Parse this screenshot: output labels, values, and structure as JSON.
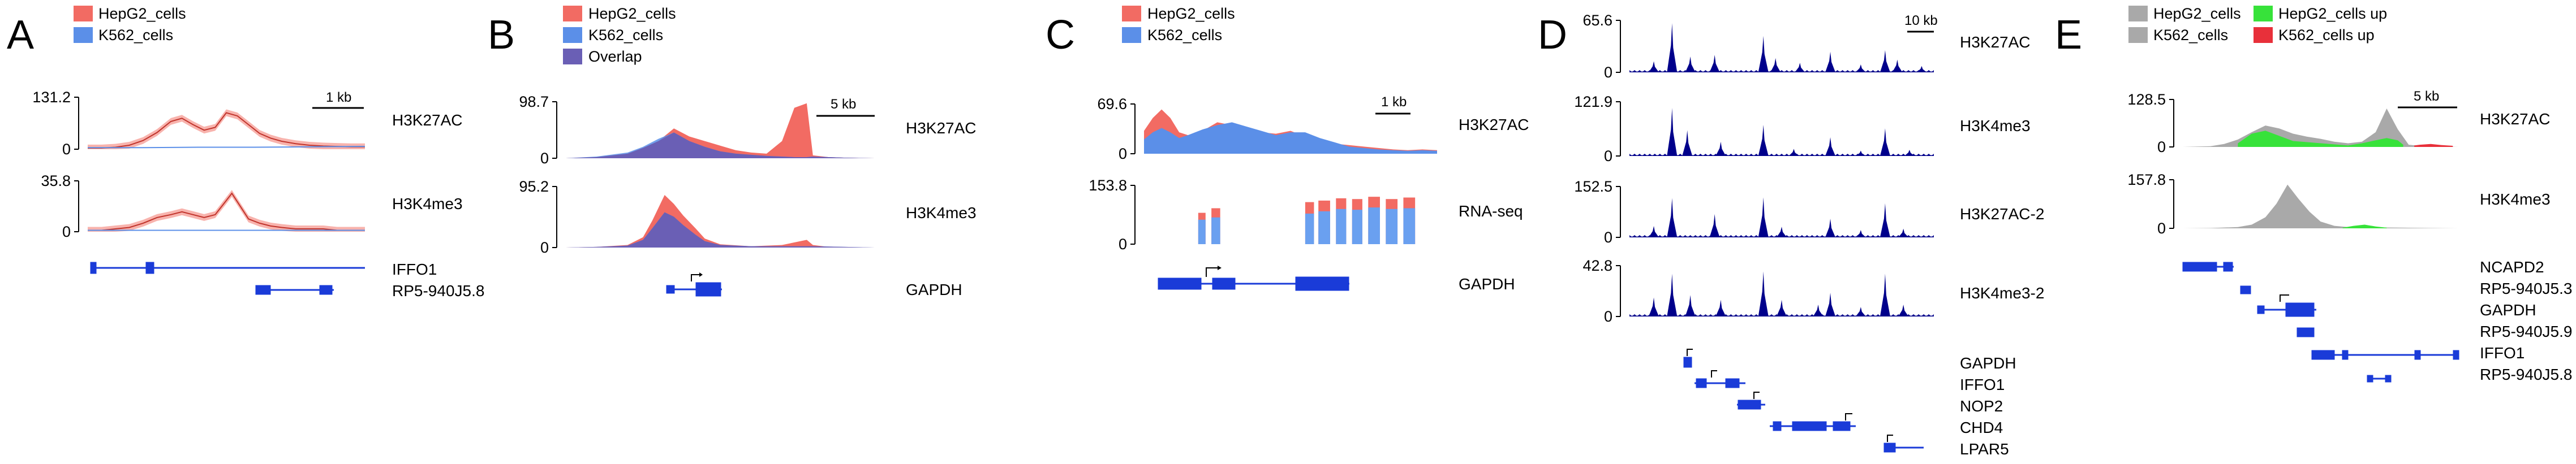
{
  "colors": {
    "hepg2": "#f26b63",
    "hepg2_fill": "#f8b3ad",
    "k562": "#5b8fe8",
    "k562_fill": "#6aa0f0",
    "overlap": "#6a5fb5",
    "navy": "#00008b",
    "gene": "#1a3bd8",
    "grey": "#a9a9a9",
    "green": "#37e23a",
    "red_up": "#e8303a",
    "axis": "#000000"
  },
  "chart_data": [
    {
      "panel": "A",
      "type": "line",
      "legend": [
        "HepG2_cells",
        "K562_cells"
      ],
      "scalebar": "1 kb",
      "tracks": [
        {
          "name": "H3K27AC",
          "ylim": [
            0,
            131.2
          ],
          "ticks": [
            "131.2",
            "0"
          ],
          "series": [
            {
              "name": "HepG2_cells",
              "x": [
                0,
                0.05,
                0.1,
                0.15,
                0.2,
                0.25,
                0.3,
                0.34,
                0.38,
                0.42,
                0.46,
                0.5,
                0.54,
                0.58,
                0.62,
                0.66,
                0.7,
                0.75,
                0.8,
                0.85,
                0.9,
                0.95,
                1.0
              ],
              "values": [
                3,
                3,
                5,
                10,
                22,
                42,
                70,
                78,
                62,
                48,
                55,
                92,
                84,
                62,
                40,
                28,
                20,
                14,
                10,
                8,
                7,
                6,
                6
              ]
            },
            {
              "name": "K562_cells",
              "x": [
                0,
                0.2,
                0.4,
                0.6,
                0.8,
                1.0
              ],
              "values": [
                4,
                4,
                5,
                5,
                6,
                7
              ]
            }
          ]
        },
        {
          "name": "H3K4me3",
          "ylim": [
            0,
            35.8
          ],
          "ticks": [
            "35.8",
            "0"
          ],
          "series": [
            {
              "name": "HepG2_cells",
              "x": [
                0,
                0.05,
                0.1,
                0.15,
                0.2,
                0.25,
                0.3,
                0.34,
                0.38,
                0.42,
                0.46,
                0.5,
                0.52,
                0.55,
                0.58,
                0.62,
                0.66,
                0.7,
                0.75,
                0.8,
                0.85,
                0.9,
                0.95,
                1.0
              ],
              "values": [
                1,
                1,
                2,
                3,
                6,
                10,
                12,
                14,
                12,
                10,
                12,
                22,
                27,
                18,
                9,
                6,
                4,
                3,
                2,
                2,
                2,
                1,
                1,
                1
              ]
            },
            {
              "name": "K562_cells",
              "x": [
                0,
                0.3,
                0.6,
                1.0
              ],
              "values": [
                1,
                1,
                1,
                1
              ]
            }
          ]
        }
      ],
      "genes": [
        "IFFO1",
        "RP5-940J5.8"
      ]
    },
    {
      "panel": "B",
      "type": "area",
      "legend": [
        "HepG2_cells",
        "K562_cells",
        "Overlap"
      ],
      "scalebar": "5 kb",
      "tracks": [
        {
          "name": "H3K27AC",
          "ylim": [
            0,
            98.7
          ],
          "ticks": [
            "98.7",
            "0"
          ],
          "series": [
            {
              "name": "HepG2_cells",
              "x": [
                0,
                0.1,
                0.2,
                0.25,
                0.3,
                0.35,
                0.4,
                0.45,
                0.5,
                0.55,
                0.6,
                0.65,
                0.7,
                0.74,
                0.78,
                0.8,
                0.85,
                0.9,
                1.0
              ],
              "values": [
                0,
                2,
                8,
                18,
                30,
                52,
                38,
                30,
                22,
                14,
                10,
                8,
                30,
                88,
                96,
                5,
                2,
                1,
                0
              ]
            },
            {
              "name": "K562_cells",
              "x": [
                0,
                0.1,
                0.2,
                0.25,
                0.3,
                0.35,
                0.4,
                0.45,
                0.5,
                0.55,
                0.6,
                0.65,
                0.7,
                0.74,
                0.78,
                0.8,
                0.85,
                0.9,
                1.0
              ],
              "values": [
                0,
                3,
                10,
                20,
                34,
                45,
                30,
                20,
                12,
                8,
                6,
                4,
                3,
                2,
                2,
                3,
                2,
                1,
                0
              ]
            }
          ]
        },
        {
          "name": "H3K4me3",
          "ylim": [
            0,
            95.2
          ],
          "ticks": [
            "95.2",
            "0"
          ],
          "series": [
            {
              "name": "HepG2_cells",
              "x": [
                0,
                0.1,
                0.2,
                0.25,
                0.28,
                0.32,
                0.35,
                0.38,
                0.42,
                0.45,
                0.5,
                0.6,
                0.7,
                0.78,
                0.8,
                0.85,
                1.0
              ],
              "values": [
                0,
                1,
                4,
                16,
                42,
                82,
                68,
                50,
                30,
                14,
                5,
                2,
                4,
                12,
                4,
                1,
                0
              ]
            },
            {
              "name": "K562_cells",
              "x": [
                0,
                0.1,
                0.2,
                0.25,
                0.28,
                0.32,
                0.35,
                0.38,
                0.42,
                0.45,
                0.5,
                0.6,
                0.7,
                0.8,
                1.0
              ],
              "values": [
                0,
                1,
                3,
                12,
                30,
                55,
                48,
                35,
                20,
                10,
                4,
                2,
                2,
                2,
                0
              ]
            }
          ]
        }
      ],
      "genes": [
        "GAPDH"
      ]
    },
    {
      "panel": "C",
      "type": "area",
      "legend": [
        "HepG2_cells",
        "K562_cells"
      ],
      "scalebar": "1 kb",
      "tracks": [
        {
          "name": "H3K27AC",
          "ylim": [
            0,
            69.6
          ],
          "ticks": [
            "69.6",
            "0"
          ],
          "series": [
            {
              "name": "HepG2_cells",
              "x": [
                0,
                0.03,
                0.06,
                0.09,
                0.12,
                0.15,
                0.2,
                0.25,
                0.3,
                0.35,
                0.4,
                0.45,
                0.5,
                0.55,
                0.6,
                0.65,
                0.7,
                0.75,
                0.8,
                0.85,
                0.9,
                0.95,
                1.0
              ],
              "values": [
                32,
                50,
                62,
                50,
                30,
                26,
                32,
                44,
                40,
                34,
                30,
                28,
                32,
                24,
                18,
                14,
                12,
                10,
                8,
                6,
                5,
                6,
                5
              ]
            },
            {
              "name": "K562_cells",
              "x": [
                0,
                0.03,
                0.06,
                0.09,
                0.12,
                0.15,
                0.2,
                0.25,
                0.3,
                0.35,
                0.4,
                0.45,
                0.5,
                0.55,
                0.6,
                0.65,
                0.7,
                0.75,
                0.8,
                0.85,
                0.9,
                0.95,
                1.0
              ],
              "values": [
                20,
                30,
                36,
                30,
                22,
                26,
                34,
                40,
                44,
                38,
                32,
                26,
                30,
                30,
                22,
                16,
                10,
                8,
                6,
                5,
                4,
                5,
                4
              ]
            }
          ]
        },
        {
          "name": "RNA-seq",
          "ylim": [
            0,
            153.8
          ],
          "ticks": [
            "153.8",
            "0"
          ],
          "type": "bar",
          "bars": [
            {
              "x": 0.185,
              "w": 0.025,
              "values": [
                82,
                64
              ]
            },
            {
              "x": 0.23,
              "w": 0.03,
              "values": [
                94,
                70
              ]
            },
            {
              "x": 0.55,
              "w": 0.03,
              "values": [
                110,
                80
              ]
            },
            {
              "x": 0.595,
              "w": 0.04,
              "values": [
                114,
                86
              ]
            },
            {
              "x": 0.655,
              "w": 0.035,
              "values": [
                120,
                92
              ]
            },
            {
              "x": 0.71,
              "w": 0.035,
              "values": [
                118,
                90
              ]
            },
            {
              "x": 0.765,
              "w": 0.04,
              "values": [
                124,
                96
              ]
            },
            {
              "x": 0.825,
              "w": 0.04,
              "values": [
                118,
                92
              ]
            },
            {
              "x": 0.885,
              "w": 0.04,
              "values": [
                122,
                94
              ]
            }
          ]
        }
      ],
      "genes": [
        "GAPDH"
      ]
    },
    {
      "panel": "D",
      "type": "area",
      "scalebar": "10 kb",
      "tracks": [
        {
          "name": "H3K27AC",
          "ylim": [
            0,
            65.6
          ],
          "ticks": [
            "65.6",
            "0"
          ],
          "peaks": [
            [
              0.08,
              14
            ],
            [
              0.14,
              62
            ],
            [
              0.2,
              20
            ],
            [
              0.28,
              22
            ],
            [
              0.44,
              46
            ],
            [
              0.48,
              18
            ],
            [
              0.56,
              12
            ],
            [
              0.66,
              26
            ],
            [
              0.76,
              10
            ],
            [
              0.84,
              28
            ],
            [
              0.88,
              16
            ],
            [
              0.96,
              8
            ]
          ]
        },
        {
          "name": "H3K4me3",
          "ylim": [
            0,
            121.9
          ],
          "ticks": [
            "121.9",
            "0"
          ],
          "peaks": [
            [
              0.14,
              108
            ],
            [
              0.19,
              58
            ],
            [
              0.3,
              32
            ],
            [
              0.44,
              70
            ],
            [
              0.54,
              16
            ],
            [
              0.66,
              42
            ],
            [
              0.76,
              12
            ],
            [
              0.84,
              62
            ],
            [
              0.92,
              14
            ]
          ]
        },
        {
          "name": "H3K27AC-2",
          "ylim": [
            0,
            152.5
          ],
          "ticks": [
            "152.5",
            "0"
          ],
          "peaks": [
            [
              0.08,
              34
            ],
            [
              0.14,
              118
            ],
            [
              0.28,
              70
            ],
            [
              0.44,
              120
            ],
            [
              0.5,
              32
            ],
            [
              0.66,
              56
            ],
            [
              0.76,
              22
            ],
            [
              0.84,
              102
            ],
            [
              0.9,
              26
            ]
          ]
        },
        {
          "name": "H3K4me3-2",
          "ylim": [
            0,
            42.8
          ],
          "ticks": [
            "42.8",
            "0"
          ],
          "peaks": [
            [
              0.08,
              16
            ],
            [
              0.14,
              36
            ],
            [
              0.2,
              18
            ],
            [
              0.3,
              14
            ],
            [
              0.44,
              38
            ],
            [
              0.5,
              14
            ],
            [
              0.62,
              10
            ],
            [
              0.66,
              20
            ],
            [
              0.76,
              8
            ],
            [
              0.84,
              36
            ],
            [
              0.9,
              10
            ]
          ]
        }
      ],
      "genes": [
        "GAPDH",
        "IFFO1",
        "NOP2",
        "CHD4",
        "LPAR5"
      ]
    },
    {
      "panel": "E",
      "type": "area",
      "legend": [
        "HepG2_cells",
        "K562_cells",
        "HepG2_cells up",
        "K562_cells up"
      ],
      "scalebar": "5 kb",
      "tracks": [
        {
          "name": "H3K27AC",
          "ylim": [
            0,
            128.5
          ],
          "ticks": [
            "128.5",
            "0"
          ],
          "series": [
            {
              "name": "grey",
              "x": [
                0,
                0.1,
                0.15,
                0.2,
                0.25,
                0.3,
                0.35,
                0.4,
                0.45,
                0.5,
                0.55,
                0.6,
                0.65,
                0.7,
                0.74,
                0.78,
                0.82,
                0.86,
                0.9,
                1.0
              ],
              "values": [
                0,
                2,
                8,
                20,
                40,
                58,
                50,
                36,
                28,
                22,
                14,
                10,
                14,
                40,
                104,
                48,
                6,
                3,
                2,
                0
              ]
            },
            {
              "name": "green",
              "x": [
                0.2,
                0.25,
                0.3,
                0.35,
                0.4,
                0.6,
                0.65,
                0.7,
                0.74,
                0.78,
                0.8
              ],
              "values": [
                10,
                36,
                44,
                30,
                16,
                4,
                10,
                18,
                24,
                18,
                6
              ]
            },
            {
              "name": "red",
              "x": [
                0.84,
                0.86,
                0.9,
                0.94,
                0.98
              ],
              "values": [
                4,
                6,
                8,
                5,
                3
              ]
            }
          ]
        },
        {
          "name": "H3K4me3",
          "ylim": [
            0,
            157.8
          ],
          "ticks": [
            "157.8",
            "0"
          ],
          "series": [
            {
              "name": "grey",
              "x": [
                0,
                0.1,
                0.2,
                0.25,
                0.3,
                0.34,
                0.38,
                0.42,
                0.46,
                0.5,
                0.55,
                0.6,
                0.7,
                0.8,
                0.9,
                1.0
              ],
              "values": [
                0,
                1,
                4,
                12,
                36,
                80,
                142,
                96,
                54,
                22,
                8,
                4,
                3,
                2,
                1,
                0
              ]
            },
            {
              "name": "green",
              "x": [
                0.58,
                0.62,
                0.66,
                0.7,
                0.74
              ],
              "values": [
                2,
                8,
                12,
                6,
                2
              ]
            }
          ]
        }
      ],
      "genes": [
        "NCAPD2",
        "RP5-940J5.3",
        "GAPDH",
        "RP5-940J5.9",
        "IFFO1",
        "RP5-940J5.8"
      ]
    }
  ]
}
